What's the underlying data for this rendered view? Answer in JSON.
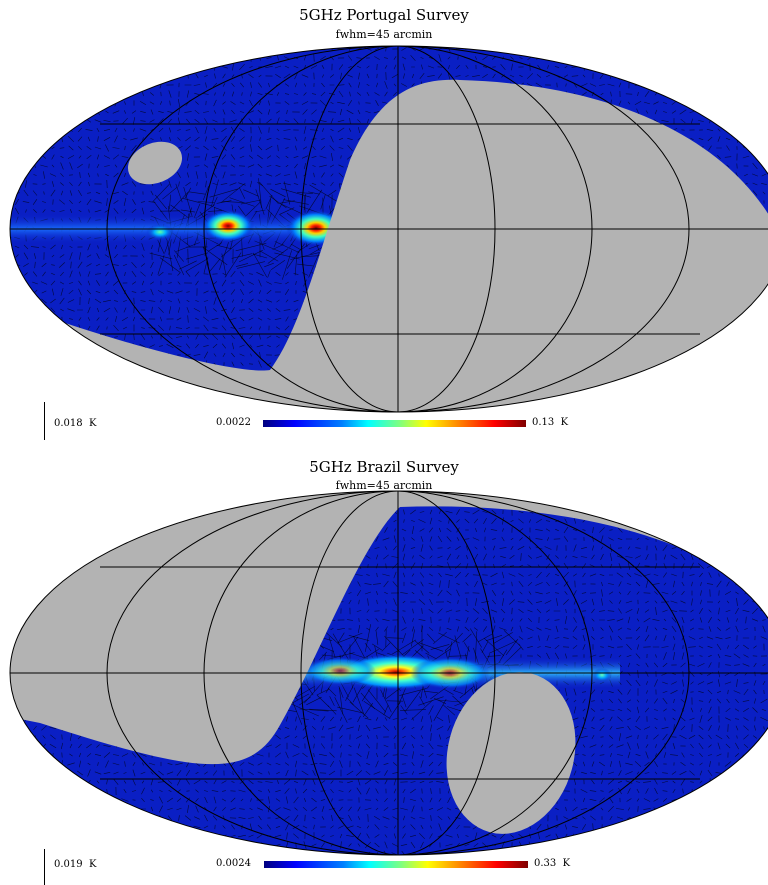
{
  "chart_data": [
    {
      "type": "heatmap",
      "projection": "Mollweide (full sky)",
      "title": "5GHz Portugal Survey",
      "subtitle": "fwhm=45 arcmin",
      "colorbar": {
        "min_label": "0.0022",
        "max_label": "0.13",
        "unit": "K",
        "min": 0.0022,
        "max": 0.13
      },
      "polarization_scale": {
        "label": "0.018",
        "unit": "K",
        "value": 0.018
      },
      "coverage": "northern-declination sky; southern region masked (grey); small masked hole upper-left",
      "galactic_plane_peaks": [
        {
          "longitude_deg": 75,
          "intensity_K": 0.13
        },
        {
          "longitude_deg": 25,
          "intensity_K": 0.12
        },
        {
          "longitude_deg": 138,
          "intensity_K": 0.05
        }
      ],
      "grid": true
    },
    {
      "type": "heatmap",
      "projection": "Mollweide (full sky)",
      "title": "5GHz Brazil Survey",
      "subtitle": "fwhm=45 arcmin",
      "colorbar": {
        "min_label": "0.0024",
        "max_label": "0.33",
        "unit": "K",
        "min": 0.0024,
        "max": 0.33
      },
      "polarization_scale": {
        "label": "0.019",
        "unit": "K",
        "value": 0.019
      },
      "coverage": "southern-declination sky; northern region masked (grey); masked hole lower-right",
      "galactic_plane_peaks": [
        {
          "longitude_deg": 0,
          "intensity_K": 0.33
        },
        {
          "longitude_deg": 30,
          "intensity_K": 0.2
        },
        {
          "longitude_deg": -30,
          "intensity_K": 0.15
        },
        {
          "longitude_deg": -115,
          "intensity_K": 0.05
        }
      ],
      "grid": true
    }
  ],
  "colors": {
    "masked": "#b3b3b3",
    "background_field": "#0a1fc4",
    "grid": "#000000"
  }
}
